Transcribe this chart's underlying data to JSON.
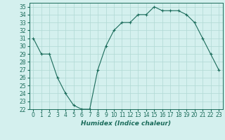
{
  "x": [
    0,
    1,
    2,
    3,
    4,
    5,
    6,
    7,
    8,
    9,
    10,
    11,
    12,
    13,
    14,
    15,
    16,
    17,
    18,
    19,
    20,
    21,
    22,
    23
  ],
  "y": [
    31,
    29,
    29,
    26,
    24,
    22.5,
    22,
    22,
    27,
    30,
    32,
    33,
    33,
    34,
    34,
    35,
    34.5,
    34.5,
    34.5,
    34,
    33,
    31,
    29,
    27
  ],
  "line_color": "#1a6b5a",
  "marker": "+",
  "bg_color": "#d4f0ee",
  "grid_color": "#b0d8d4",
  "xlabel": "Humidex (Indice chaleur)",
  "xlim": [
    -0.5,
    23.5
  ],
  "ylim": [
    22,
    35.5
  ],
  "yticks": [
    22,
    23,
    24,
    25,
    26,
    27,
    28,
    29,
    30,
    31,
    32,
    33,
    34,
    35
  ],
  "xticks": [
    0,
    1,
    2,
    3,
    4,
    5,
    6,
    7,
    8,
    9,
    10,
    11,
    12,
    13,
    14,
    15,
    16,
    17,
    18,
    19,
    20,
    21,
    22,
    23
  ],
  "label_fontsize": 6.5,
  "tick_fontsize": 5.5
}
